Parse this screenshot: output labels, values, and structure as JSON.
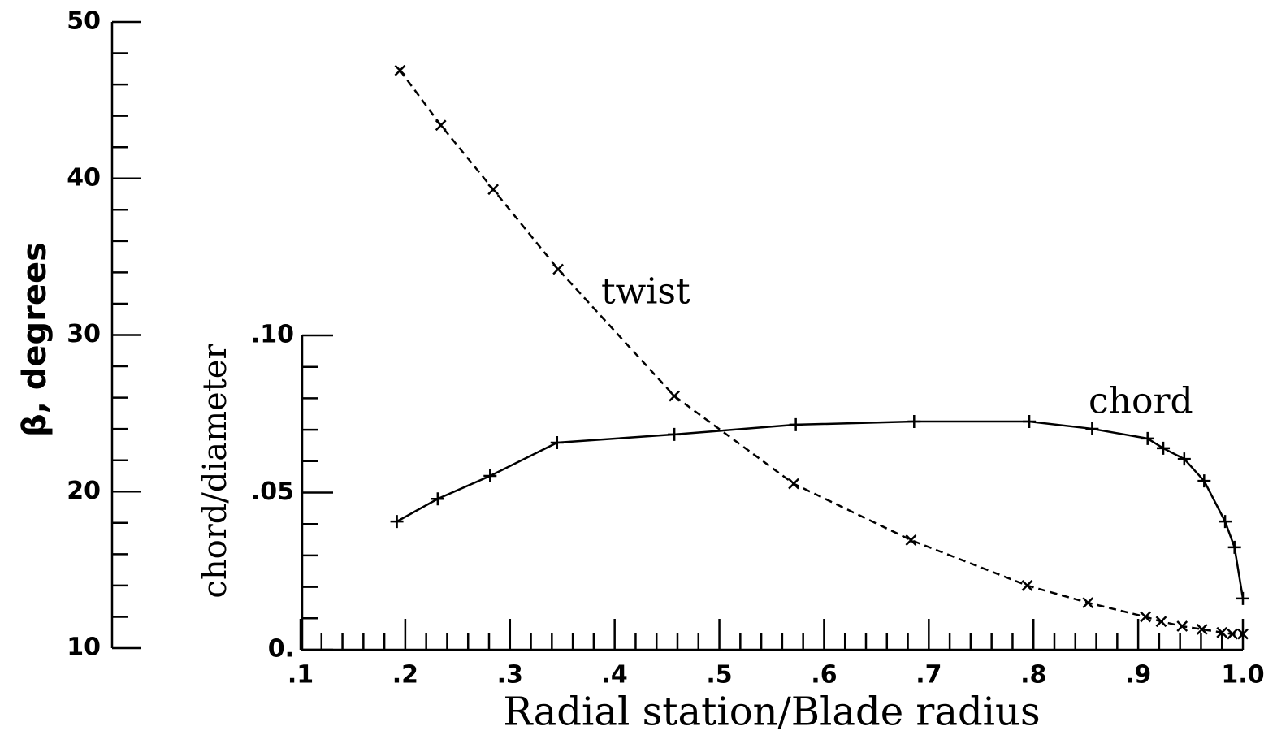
{
  "chart_data": {
    "type": "line",
    "xlabel": "Radial station/Blade radius",
    "ylabel": "β, degrees",
    "y2label": "chord/diameter",
    "xlim": [
      0.1,
      1.0
    ],
    "xticks": [
      {
        "value": 0.1,
        "label": ".1"
      },
      {
        "value": 0.2,
        "label": ".2"
      },
      {
        "value": 0.3,
        "label": ".3"
      },
      {
        "value": 0.4,
        "label": ".4"
      },
      {
        "value": 0.5,
        "label": ".5"
      },
      {
        "value": 0.6,
        "label": ".6"
      },
      {
        "value": 0.7,
        "label": ".7"
      },
      {
        "value": 0.8,
        "label": ".8"
      },
      {
        "value": 0.9,
        "label": ".9"
      },
      {
        "value": 1.0,
        "label": "1.0"
      }
    ],
    "ylim": [
      10,
      50
    ],
    "yticks": [
      10,
      20,
      30,
      40,
      50
    ],
    "y2lim": [
      0,
      0.1
    ],
    "y2ticks": [
      {
        "value": 0,
        "label": "0."
      },
      {
        "value": 0.05,
        "label": ".05"
      },
      {
        "value": 0.1,
        "label": ".10"
      }
    ],
    "annotations": [
      "twist",
      "chord"
    ],
    "series": [
      {
        "name": "twist",
        "color": "#000000",
        "dash": true,
        "marker": "x",
        "axis": "y",
        "x": [
          0.195,
          0.234,
          0.284,
          0.346,
          0.457,
          0.571,
          0.683,
          0.794,
          0.852,
          0.907,
          0.922,
          0.942,
          0.961,
          0.98,
          0.99,
          1.0
        ],
        "values": [
          46.9,
          43.4,
          39.3,
          34.2,
          26.1,
          20.5,
          16.9,
          14.0,
          12.9,
          12.0,
          11.7,
          11.4,
          11.2,
          11.0,
          10.9,
          10.9
        ]
      },
      {
        "name": "chord",
        "color": "#000000",
        "dash": false,
        "marker": "+",
        "axis": "y2",
        "x": [
          0.192,
          0.231,
          0.281,
          0.345,
          0.457,
          0.573,
          0.686,
          0.796,
          0.856,
          0.909,
          0.924,
          0.944,
          0.963,
          0.983,
          0.992,
          1.0
        ],
        "values": [
          0.0408,
          0.048,
          0.0553,
          0.0659,
          0.0685,
          0.0716,
          0.0726,
          0.0726,
          0.0703,
          0.0672,
          0.0641,
          0.0607,
          0.0537,
          0.0408,
          0.0326,
          0.0163
        ]
      }
    ]
  }
}
